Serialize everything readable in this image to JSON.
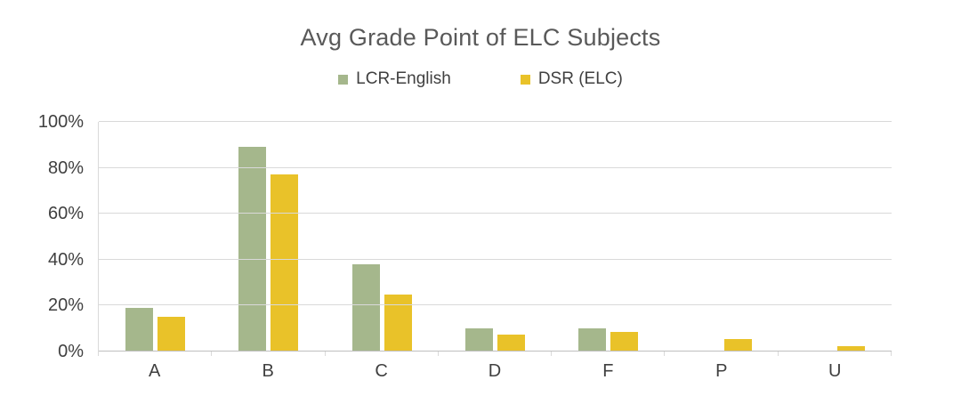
{
  "chart_data": {
    "type": "bar",
    "title": "Avg Grade Point of ELC Subjects",
    "categories": [
      "A",
      "B",
      "C",
      "D",
      "F",
      "P",
      "U"
    ],
    "series": [
      {
        "name": "LCR-English",
        "color": "#A5B78C",
        "values": [
          19,
          89,
          38,
          10,
          10,
          0,
          0
        ]
      },
      {
        "name": "DSR (ELC)",
        "color": "#E9C229",
        "values": [
          15,
          77,
          25,
          7.5,
          8.5,
          5.5,
          2.5
        ]
      }
    ],
    "ylabel": "",
    "xlabel": "",
    "ylim": [
      0,
      100
    ],
    "yticks": [
      {
        "value": 0,
        "label": "0%"
      },
      {
        "value": 20,
        "label": "20%"
      },
      {
        "value": 40,
        "label": "40%"
      },
      {
        "value": 60,
        "label": "60%"
      },
      {
        "value": 80,
        "label": "80%"
      },
      {
        "value": 100,
        "label": "100%"
      }
    ],
    "grid": true,
    "legend_position": "top",
    "colors": {
      "title_text": "#595959",
      "axis_text": "#404040",
      "gridline": "#D9D9D9",
      "axis_line": "#BFBFBF",
      "background": "#FFFFFF"
    }
  }
}
